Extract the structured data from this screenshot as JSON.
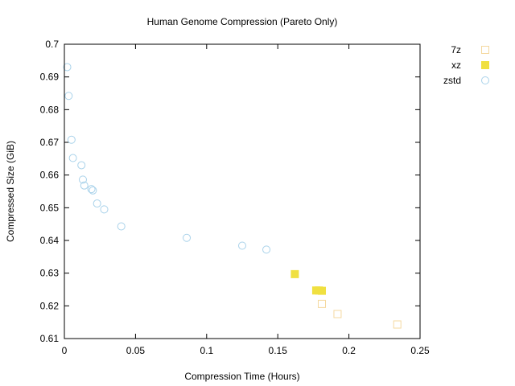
{
  "chart_data": {
    "type": "scatter",
    "title": "Human Genome Compression (Pareto Only)",
    "xlabel": "Compression Time (Hours)",
    "ylabel": "Compressed Size (GiB)",
    "xlim": [
      0,
      0.25
    ],
    "ylim": [
      0.61,
      0.7
    ],
    "xticks": [
      0,
      0.05,
      0.1,
      0.15,
      0.2,
      0.25
    ],
    "xtick_labels": [
      "0",
      "0.05",
      "0.1",
      "0.15",
      "0.2",
      "0.25"
    ],
    "yticks": [
      0.61,
      0.62,
      0.63,
      0.64,
      0.65,
      0.66,
      0.67,
      0.68,
      0.69,
      0.7
    ],
    "ytick_labels": [
      "0.61",
      "0.62",
      "0.63",
      "0.64",
      "0.65",
      "0.66",
      "0.67",
      "0.68",
      "0.69",
      "0.7"
    ],
    "grid": false,
    "legend_position": "right",
    "series": [
      {
        "name": "7z",
        "marker": "open-square",
        "color": "#f5d9a0",
        "points": [
          {
            "x": 0.181,
            "y": 0.6206
          },
          {
            "x": 0.192,
            "y": 0.6175
          },
          {
            "x": 0.234,
            "y": 0.6143
          }
        ]
      },
      {
        "name": "xz",
        "marker": "filled-square",
        "color": "#f0e040",
        "points": [
          {
            "x": 0.162,
            "y": 0.6297
          },
          {
            "x": 0.177,
            "y": 0.6247
          },
          {
            "x": 0.179,
            "y": 0.6247
          },
          {
            "x": 0.181,
            "y": 0.6246
          }
        ]
      },
      {
        "name": "zstd",
        "marker": "open-circle",
        "color": "#a9d2ea",
        "points": [
          {
            "x": 0.002,
            "y": 0.693
          },
          {
            "x": 0.003,
            "y": 0.6842
          },
          {
            "x": 0.005,
            "y": 0.6708
          },
          {
            "x": 0.006,
            "y": 0.6652
          },
          {
            "x": 0.012,
            "y": 0.663
          },
          {
            "x": 0.013,
            "y": 0.6586
          },
          {
            "x": 0.014,
            "y": 0.6568
          },
          {
            "x": 0.019,
            "y": 0.6557
          },
          {
            "x": 0.02,
            "y": 0.6553
          },
          {
            "x": 0.023,
            "y": 0.6513
          },
          {
            "x": 0.028,
            "y": 0.6495
          },
          {
            "x": 0.04,
            "y": 0.6443
          },
          {
            "x": 0.086,
            "y": 0.6408
          },
          {
            "x": 0.125,
            "y": 0.6384
          },
          {
            "x": 0.142,
            "y": 0.6372
          }
        ]
      }
    ]
  }
}
